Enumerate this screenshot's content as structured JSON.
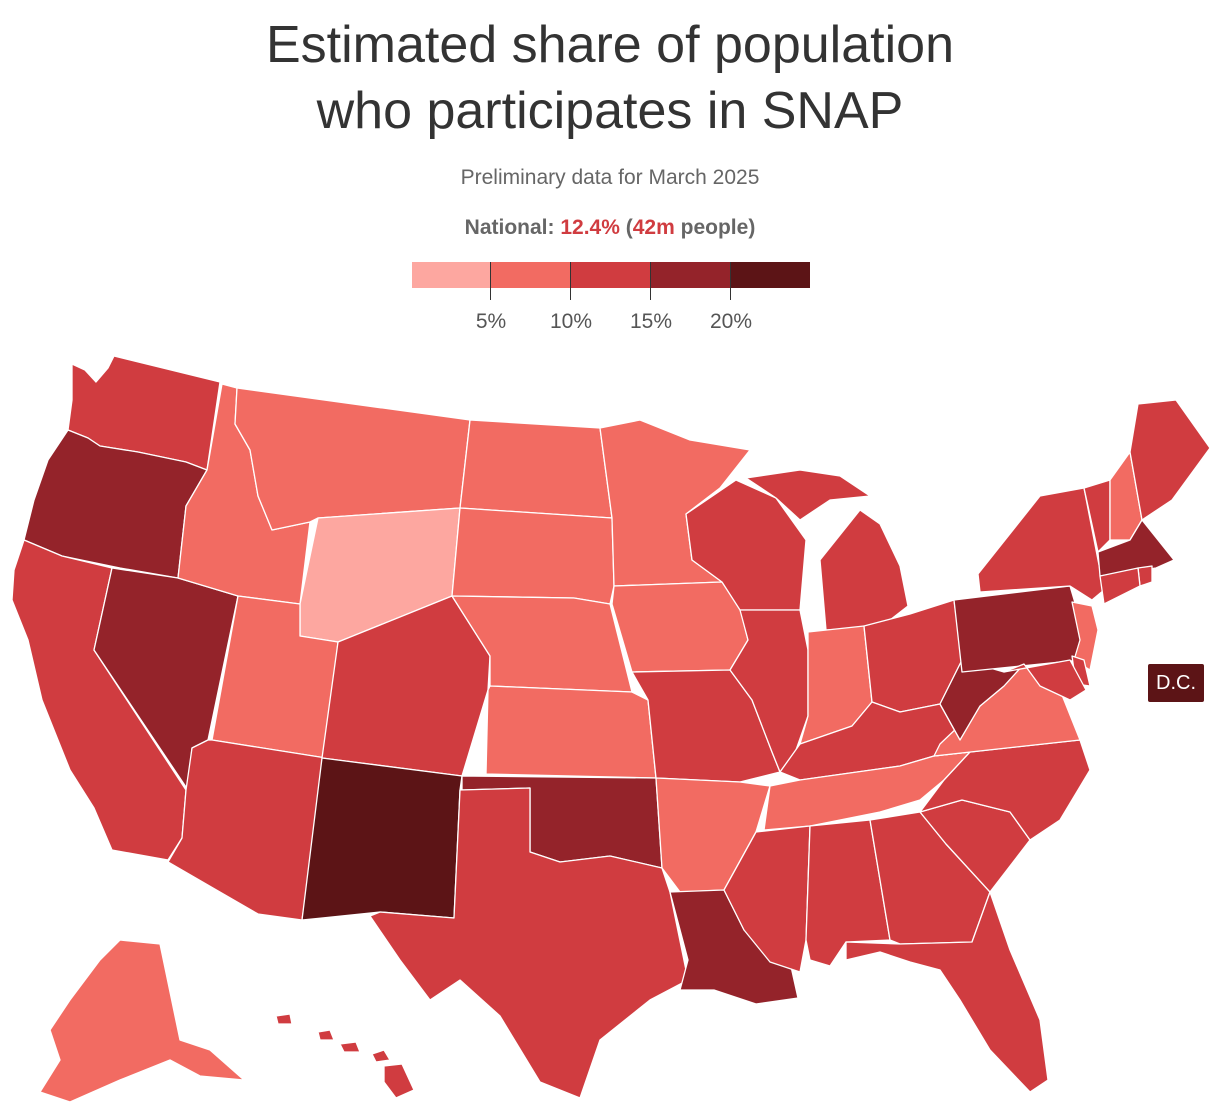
{
  "title_line1": "Estimated share of population",
  "title_line2": "who participates in SNAP",
  "subtitle": "Preliminary data for March 2025",
  "national": {
    "label": "National:",
    "share": "12.4%",
    "paren_open": "(",
    "count": "42m",
    "people": "people",
    "paren_close": ")"
  },
  "legend": {
    "ticks": [
      "5%",
      "10%",
      "15%",
      "20%"
    ],
    "colors": [
      "#fda7a0",
      "#f26b62",
      "#d03c40",
      "#94232a",
      "#5c1416"
    ]
  },
  "dc_label": "D.C.",
  "map_data": {
    "bin_colors": {
      "1": "#fda7a0",
      "2": "#f26b62",
      "3": "#d03c40",
      "4": "#94232a",
      "5": "#5c1416"
    },
    "states": [
      {
        "id": "WA",
        "bin": 3
      },
      {
        "id": "OR",
        "bin": 4
      },
      {
        "id": "CA",
        "bin": 3
      },
      {
        "id": "NV",
        "bin": 4
      },
      {
        "id": "ID",
        "bin": 2
      },
      {
        "id": "MT",
        "bin": 2
      },
      {
        "id": "WY",
        "bin": 1
      },
      {
        "id": "UT",
        "bin": 2
      },
      {
        "id": "AZ",
        "bin": 3
      },
      {
        "id": "CO",
        "bin": 3
      },
      {
        "id": "NM",
        "bin": 5
      },
      {
        "id": "ND",
        "bin": 2
      },
      {
        "id": "SD",
        "bin": 2
      },
      {
        "id": "NE",
        "bin": 2
      },
      {
        "id": "KS",
        "bin": 2
      },
      {
        "id": "OK",
        "bin": 4
      },
      {
        "id": "TX",
        "bin": 3
      },
      {
        "id": "MN",
        "bin": 2
      },
      {
        "id": "IA",
        "bin": 2
      },
      {
        "id": "MO",
        "bin": 3
      },
      {
        "id": "AR",
        "bin": 2
      },
      {
        "id": "LA",
        "bin": 4
      },
      {
        "id": "WI",
        "bin": 3
      },
      {
        "id": "IL",
        "bin": 3
      },
      {
        "id": "MI",
        "bin": 3
      },
      {
        "id": "IN",
        "bin": 2
      },
      {
        "id": "OH",
        "bin": 3
      },
      {
        "id": "KY",
        "bin": 3
      },
      {
        "id": "TN",
        "bin": 2
      },
      {
        "id": "MS",
        "bin": 3
      },
      {
        "id": "AL",
        "bin": 3
      },
      {
        "id": "GA",
        "bin": 3
      },
      {
        "id": "FL",
        "bin": 3
      },
      {
        "id": "SC",
        "bin": 3
      },
      {
        "id": "NC",
        "bin": 3
      },
      {
        "id": "VA",
        "bin": 2
      },
      {
        "id": "WV",
        "bin": 4
      },
      {
        "id": "PA",
        "bin": 4
      },
      {
        "id": "NY",
        "bin": 3
      },
      {
        "id": "VT",
        "bin": 3
      },
      {
        "id": "NH",
        "bin": 2
      },
      {
        "id": "ME",
        "bin": 3
      },
      {
        "id": "MA",
        "bin": 4
      },
      {
        "id": "RI",
        "bin": 3
      },
      {
        "id": "CT",
        "bin": 3
      },
      {
        "id": "NJ",
        "bin": 2
      },
      {
        "id": "DE",
        "bin": 3
      },
      {
        "id": "MD",
        "bin": 3
      },
      {
        "id": "AK",
        "bin": 2
      },
      {
        "id": "HI",
        "bin": 3
      },
      {
        "id": "DC",
        "bin": 5
      }
    ]
  }
}
